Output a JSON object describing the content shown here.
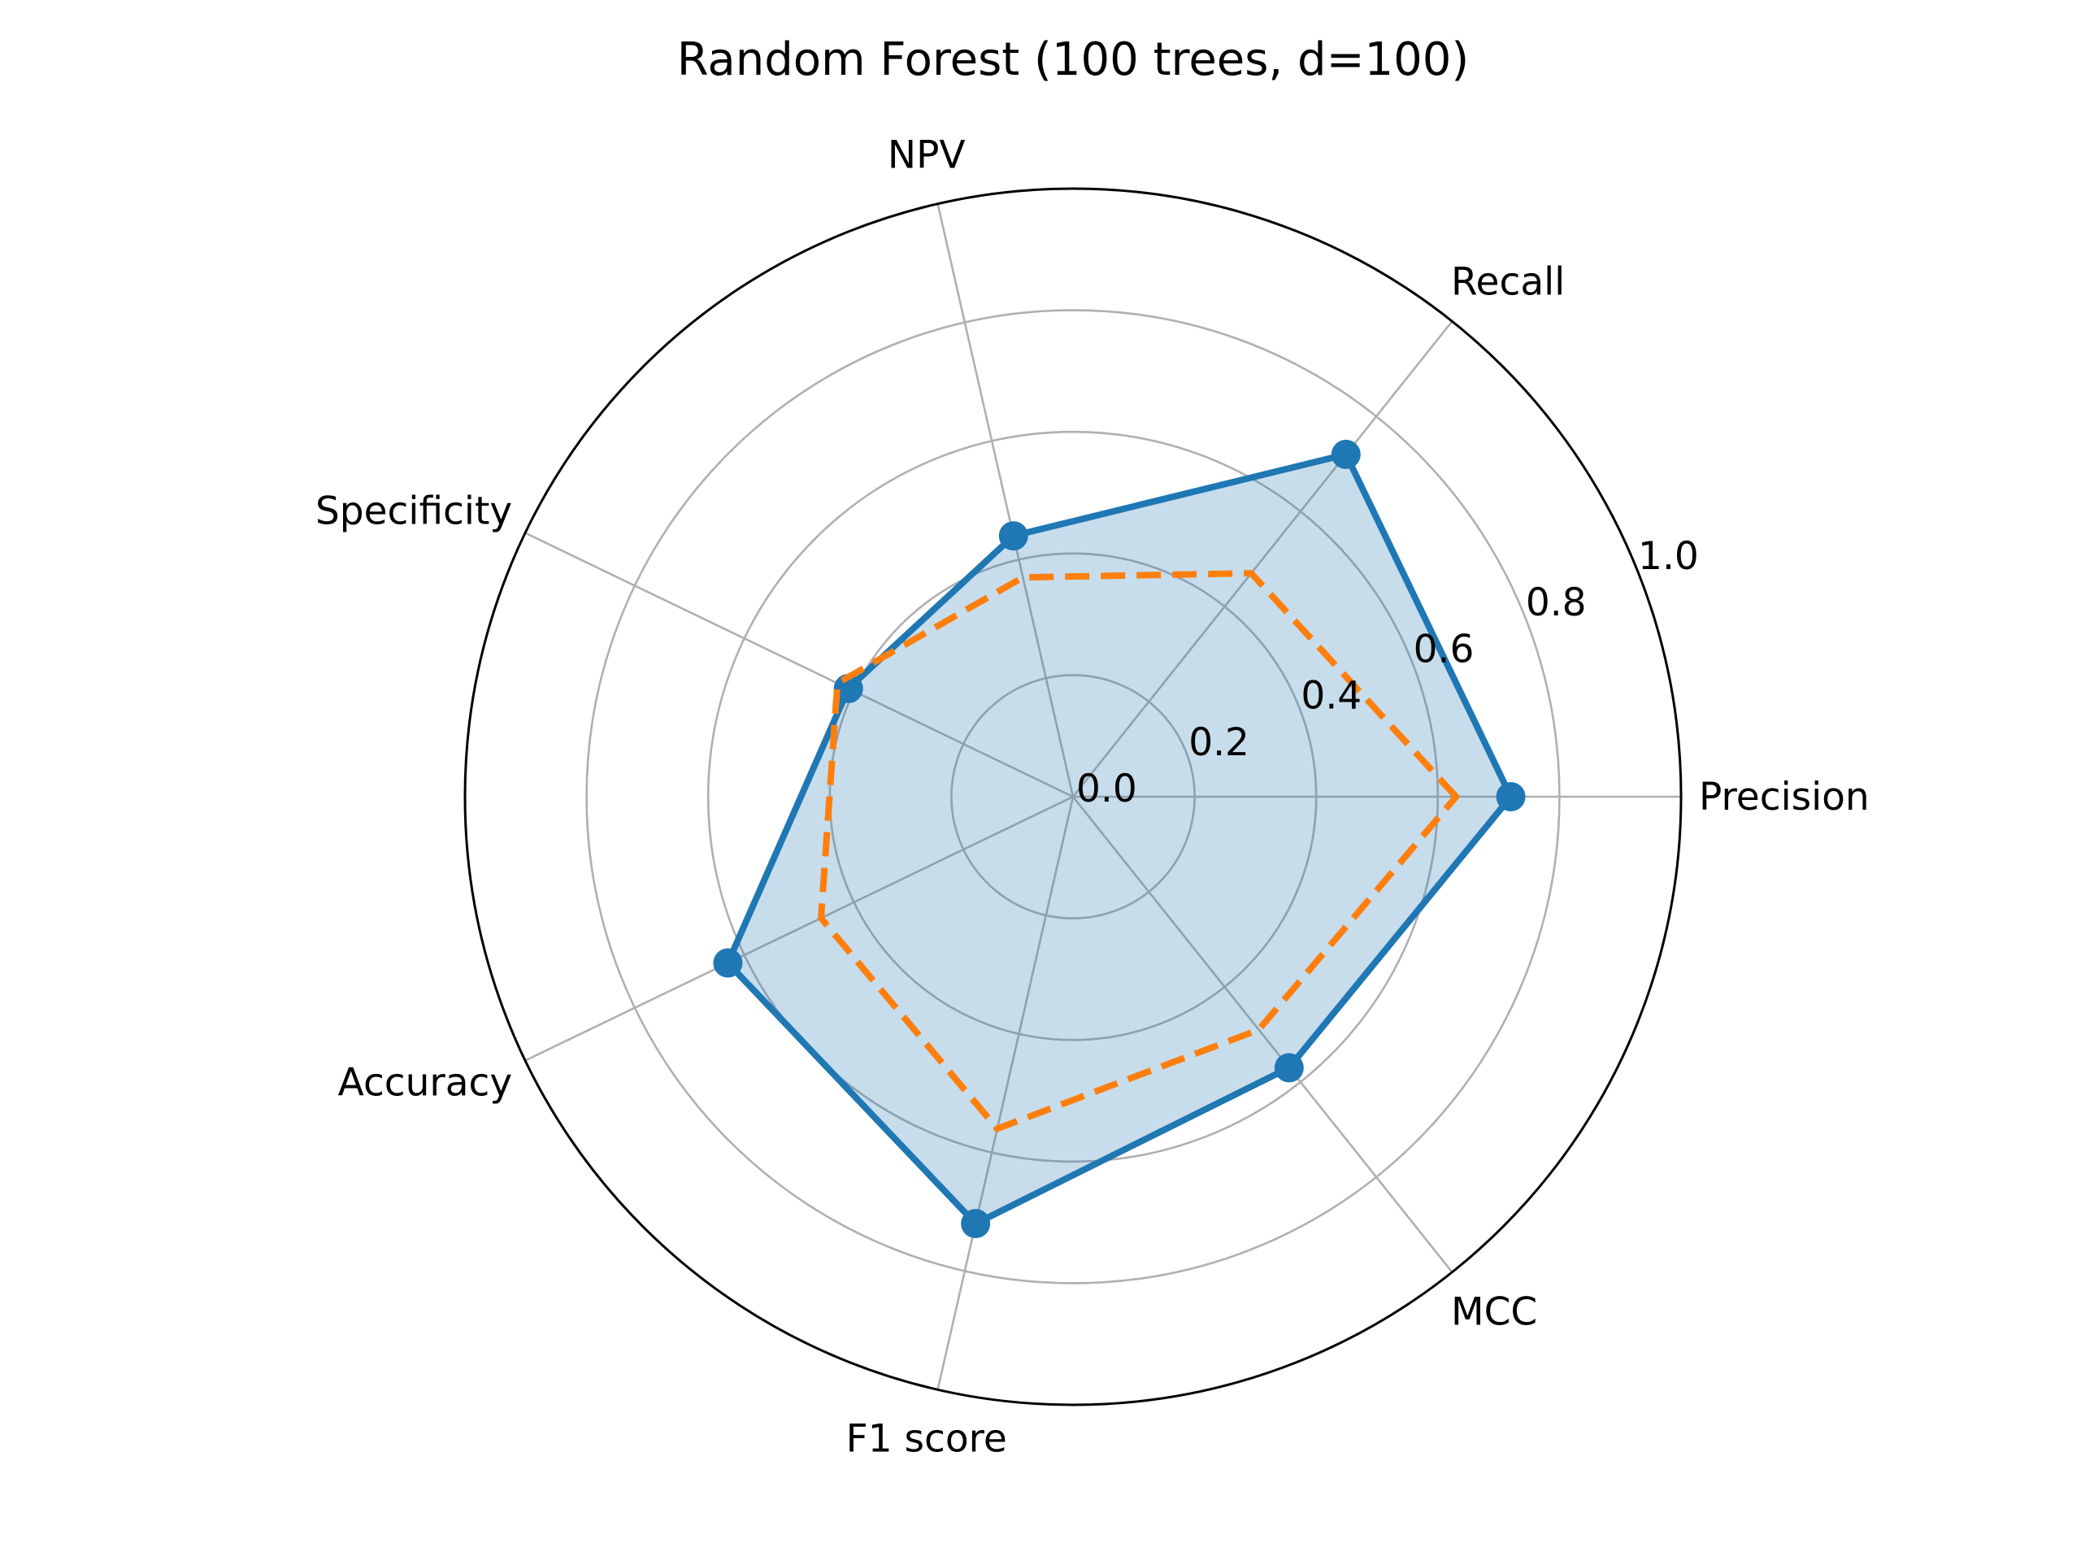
{
  "chart_data": {
    "type": "radar",
    "title": "Random Forest (100 trees, d=100)",
    "categories": [
      "Precision",
      "Recall",
      "NPV",
      "Specificity",
      "Accuracy",
      "F1 score",
      "MCC"
    ],
    "rlim": [
      0,
      1.0
    ],
    "rticks": [
      0.0,
      0.2,
      0.4,
      0.6,
      0.8,
      1.0
    ],
    "rtick_labels": [
      "0.0",
      "0.2",
      "0.4",
      "0.6",
      "0.8",
      "1.0"
    ],
    "grid": true,
    "series": [
      {
        "values": [
          0.72,
          0.72,
          0.44,
          0.41,
          0.63,
          0.72,
          0.57
        ],
        "color": "#1f77b4",
        "style": "solid",
        "markers": true,
        "fill": true,
        "fill_color": "#1f77b4",
        "fill_opacity": 0.25
      },
      {
        "values": [
          0.63,
          0.47,
          0.37,
          0.43,
          0.46,
          0.56,
          0.49
        ],
        "color": "#ff7f0e",
        "style": "dashed",
        "markers": false,
        "fill": false
      }
    ]
  }
}
